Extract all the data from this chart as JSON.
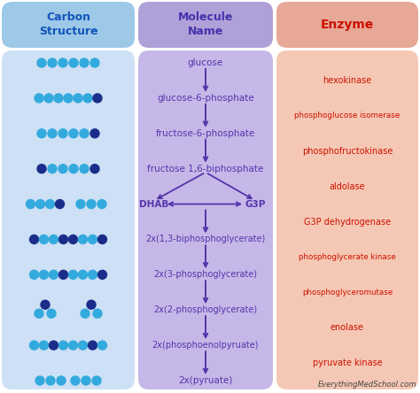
{
  "col1_header": "Carbon\nStructure",
  "col2_header": "Molecule\nName",
  "col3_header": "Enzyme",
  "col1_bg": "#cde0f5",
  "col2_bg": "#c5b8e8",
  "col3_bg": "#f5c8b5",
  "header_col1_bg": "#9ec8e8",
  "header_col2_bg": "#b0a0d8",
  "header_col3_bg": "#e8a898",
  "molecule_color": "#5533aa",
  "enzyme_color": "#cc1100",
  "arrow_color": "#5533aa",
  "watermark": "EverythingMedSchool.com",
  "watermark_color": "#444444",
  "molecules": [
    "glucose",
    "glucose-6-phosphate",
    "fructose-6-phosphate",
    "fructose 1,6-biphosphate",
    "DHAB",
    "G3P",
    "2x(1,3-biphosphoglycerate)",
    "2x(3-phosphoglycerate)",
    "2x(2-phosphoglycerate)",
    "2x(phosphoenolpyruate)",
    "2x(pyruate)"
  ],
  "enzymes": [
    "hexokinase",
    "phosphoglucose isomerase",
    "phosphofructokinase",
    "aldolase",
    "G3P dehydrogenase",
    "phosphoglycerate kinase",
    "phosphoglyceromutase",
    "enolase",
    "pyruvate kinase"
  ],
  "fig_bg": "#ffffff",
  "dot_light": "#33aadd",
  "dot_dark": "#1a2d8a",
  "fig_w": 4.74,
  "fig_h": 4.44,
  "dpi": 100
}
